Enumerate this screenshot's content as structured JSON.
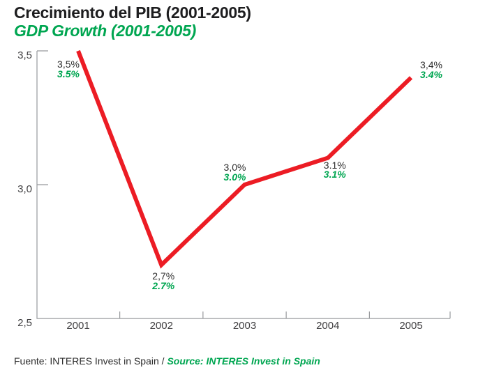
{
  "chart_data": {
    "type": "line",
    "title": "Crecimiento del PIB (2001-2005)",
    "subtitle": "GDP Growth (2001-2005)",
    "categories": [
      "2001",
      "2002",
      "2003",
      "2004",
      "2005"
    ],
    "values": [
      3.5,
      2.7,
      3.0,
      3.1,
      3.4
    ],
    "series_name": "GDP growth %",
    "point_labels_es": [
      "3,5%",
      "2,7%",
      "3,0%",
      "3.1%",
      "3,4%"
    ],
    "point_labels_en": [
      "3.5%",
      "2.7%",
      "3.0%",
      "3.1%",
      "3.4%"
    ],
    "y_ticks": [
      {
        "value": 3.5,
        "label": "3,5"
      },
      {
        "value": 3.0,
        "label": "3,0"
      },
      {
        "value": 2.5,
        "label": "2,5"
      }
    ],
    "ylim": [
      2.5,
      3.5
    ],
    "xlabel": "",
    "ylabel": "",
    "grid": false,
    "legend": "none",
    "colors": {
      "line": "#ec1c24",
      "accent_green": "#00a651",
      "axis": "#97999c",
      "text": "#2d2d2d"
    }
  },
  "footer": {
    "source_es": "Fuente: INTERES Invest in Spain / ",
    "source_en": "Source: INTERES Invest in Spain"
  }
}
